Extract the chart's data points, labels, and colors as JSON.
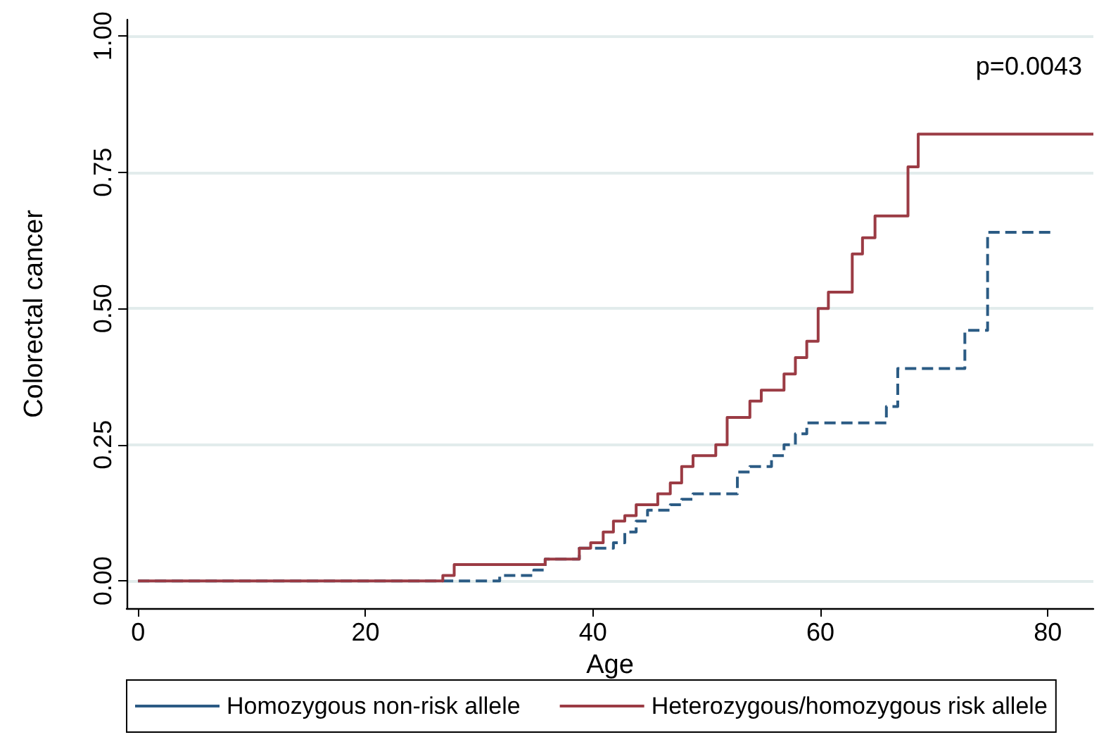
{
  "chart_data": {
    "type": "step",
    "xlabel": "Age",
    "ylabel": "Colorectal cancer",
    "annotations": [
      "p=0.0043"
    ],
    "xlim": [
      -1,
      84
    ],
    "xticks": [
      0,
      20,
      40,
      60,
      80
    ],
    "ylim": [
      -0.05,
      1.03
    ],
    "yticks": [
      {
        "value": 0,
        "label": "0.00"
      },
      {
        "value": 0.25,
        "label": "0.25"
      },
      {
        "value": 0.5,
        "label": "0.50"
      },
      {
        "value": 0.75,
        "label": "0.75"
      },
      {
        "value": 1,
        "label": "1.00"
      }
    ],
    "grid": "y",
    "legend": "bottom",
    "marker": "none",
    "series": [
      {
        "name": "Homozygous non-risk allele",
        "color": "#2b5b84",
        "line_style": "dashed",
        "x": [
          0,
          31.8,
          34.8,
          35.8,
          36.8,
          38.8,
          41.8,
          42.8,
          43.8,
          44.8,
          46.8,
          47.8,
          48.8,
          52.7,
          53.8,
          55.7,
          56.8,
          57.8,
          58.8,
          65.8,
          66.8,
          72.7,
          74.7,
          80.6
        ],
        "values": [
          0,
          0.01,
          0.02,
          0.04,
          0.04,
          0.06,
          0.07,
          0.09,
          0.11,
          0.13,
          0.14,
          0.15,
          0.16,
          0.2,
          0.21,
          0.23,
          0.25,
          0.27,
          0.29,
          0.32,
          0.39,
          0.46,
          0.64,
          0.64
        ]
      },
      {
        "name": "Heterozygous/homozygous risk allele",
        "color": "#9b3b44",
        "line_style": "solid",
        "x": [
          0,
          26.8,
          27.8,
          35.8,
          38.8,
          39.8,
          40.9,
          41.8,
          42.8,
          43.8,
          45.7,
          46.8,
          47.8,
          48.8,
          50.8,
          51.8,
          53.8,
          54.8,
          56.8,
          57.8,
          58.8,
          59.8,
          60.7,
          62.8,
          63.7,
          64.8,
          67.7,
          68.6,
          84
        ],
        "values": [
          0,
          0.01,
          0.03,
          0.04,
          0.06,
          0.07,
          0.09,
          0.11,
          0.12,
          0.14,
          0.16,
          0.18,
          0.21,
          0.23,
          0.25,
          0.3,
          0.33,
          0.35,
          0.38,
          0.41,
          0.44,
          0.5,
          0.53,
          0.6,
          0.63,
          0.67,
          0.76,
          0.82,
          0.82
        ]
      }
    ]
  }
}
